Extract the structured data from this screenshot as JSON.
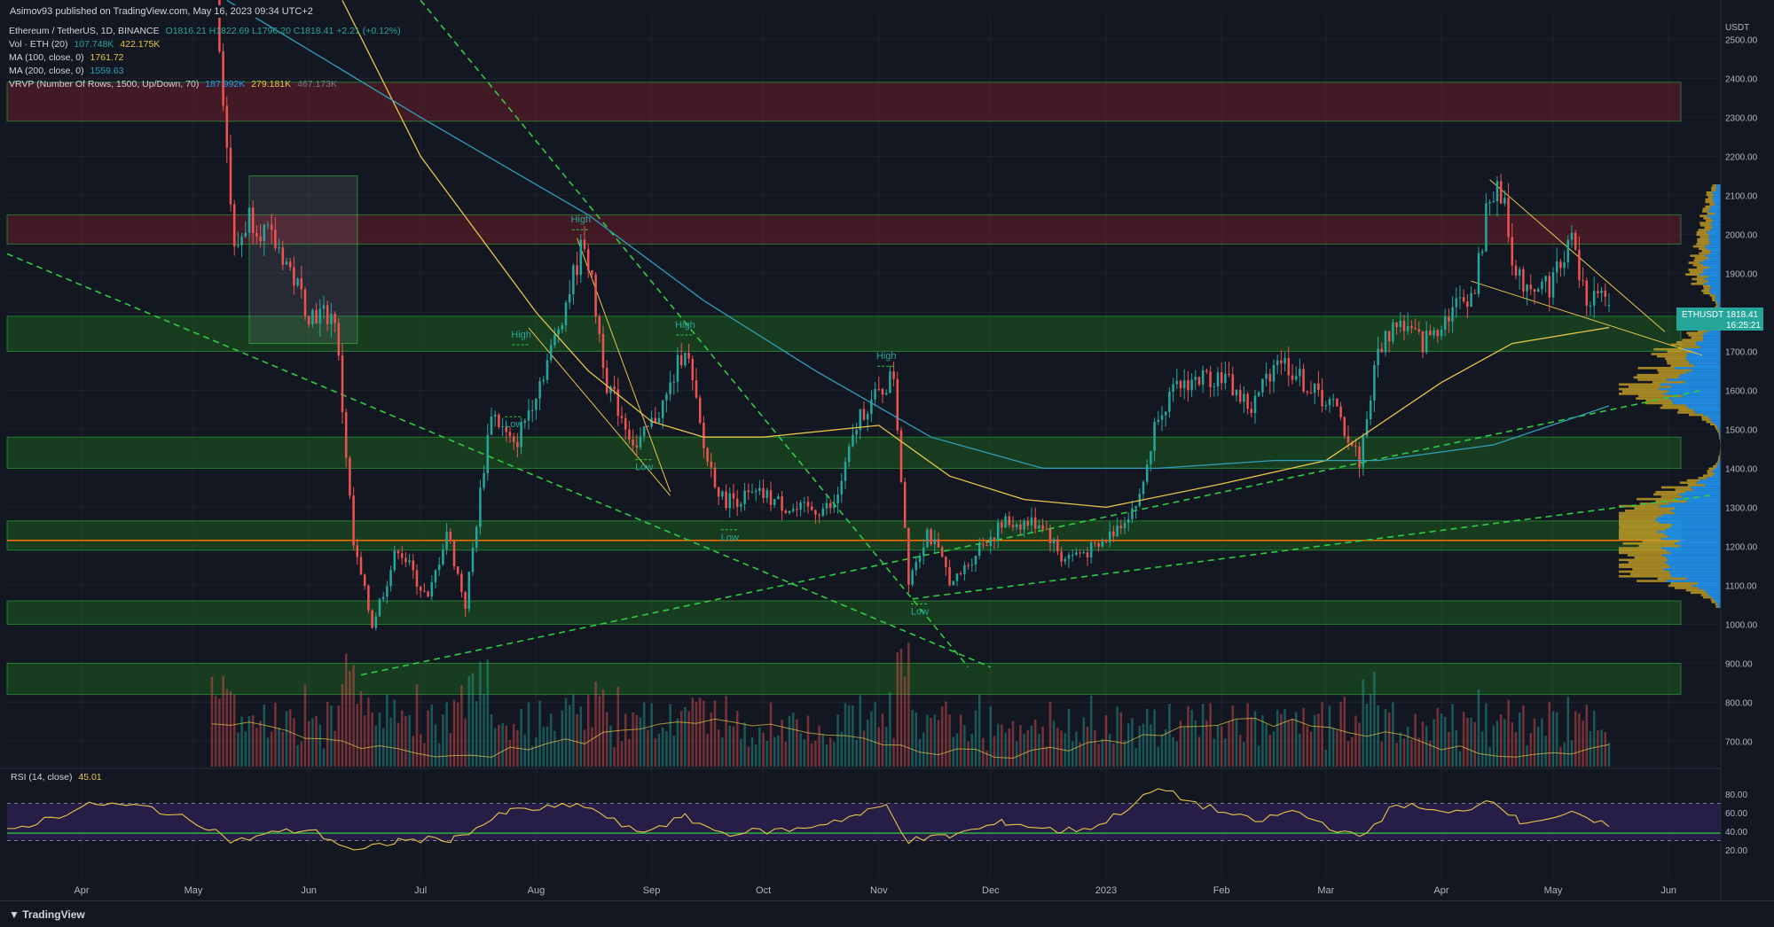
{
  "publisher_line": "Asimov93 published on TradingView.com, May 16, 2023 09:34 UTC+2",
  "legend": {
    "symbol": "Ethereum / TetherUS, 1D, BINANCE",
    "ohlc": "O1816.21 H1822.69 L1796.20 C1818.41 +2.21 (+0.12%)",
    "vol_label": "Vol · ETH (20)",
    "vol_v1": "107.748K",
    "vol_v2": "422.175K",
    "ma100_label": "MA (100, close, 0)",
    "ma100_value": "1761.72",
    "ma200_label": "MA (200, close, 0)",
    "ma200_value": "1559.63",
    "vrvp_label": "VRVP (Number Of Rows, 1500, Up/Down, 70)",
    "vrvp_v1": "187.992K",
    "vrvp_v2": "279.181K",
    "vrvp_v3": "467.173K"
  },
  "rsi_legend": {
    "label": "RSI (14, close)",
    "value": "45.01"
  },
  "price_tag": {
    "symbol": "ETHUSDT",
    "price": "1818.41",
    "countdown": "16:25:21"
  },
  "footer_brand": "TradingView",
  "colors": {
    "background": "#131722",
    "bull": "#26a69a",
    "bear": "#ef5350",
    "ma100": "#e8c547",
    "ma200": "#2e9fb8",
    "trendline": "#2ecc40",
    "resistance_zone": "#7a1f2c",
    "support_zone": "#1f6b1f",
    "rsi_band": "#2a1f4d",
    "vrvp_up": "#2196f3",
    "vrvp_down": "#c9a227",
    "poc": "#ff6d00"
  },
  "chart_data": {
    "type": "candlestick",
    "symbol": "ETHUSDT",
    "price_axis": {
      "unit": "USDT",
      "ticks": [
        2500,
        2400,
        2300,
        2200,
        2100,
        2000,
        1900,
        1800,
        1700,
        1600,
        1500,
        1400,
        1300,
        1200,
        1100,
        1000,
        900,
        800,
        700
      ],
      "ylim": [
        635,
        2560
      ]
    },
    "time_axis": {
      "ticks": [
        "Apr",
        "May",
        "Jun",
        "Jul",
        "Aug",
        "Sep",
        "Oct",
        "Nov",
        "Dec",
        "2023",
        "Feb",
        "Mar",
        "Apr",
        "May",
        "Jun"
      ],
      "x_range": [
        "2022-03-12",
        "2023-06-15"
      ]
    },
    "price_path": [
      [
        "2022-03-12",
        2580
      ],
      [
        "2022-05-05",
        2930
      ],
      [
        "2022-05-08",
        2500
      ],
      [
        "2022-05-12",
        1950
      ],
      [
        "2022-05-16",
        2050
      ],
      [
        "2022-05-25",
        1950
      ],
      [
        "2022-06-01",
        1800
      ],
      [
        "2022-06-08",
        1790
      ],
      [
        "2022-06-13",
        1200
      ],
      [
        "2022-06-18",
        1000
      ],
      [
        "2022-06-25",
        1200
      ],
      [
        "2022-07-03",
        1060
      ],
      [
        "2022-07-08",
        1240
      ],
      [
        "2022-07-13",
        1050
      ],
      [
        "2022-07-20",
        1550
      ],
      [
        "2022-07-26",
        1450
      ],
      [
        "2022-08-05",
        1700
      ],
      [
        "2022-08-14",
        1990
      ],
      [
        "2022-08-20",
        1620
      ],
      [
        "2022-08-28",
        1450
      ],
      [
        "2022-09-05",
        1580
      ],
      [
        "2022-09-10",
        1720
      ],
      [
        "2022-09-15",
        1450
      ],
      [
        "2022-09-20",
        1320
      ],
      [
        "2022-10-01",
        1330
      ],
      [
        "2022-10-10",
        1290
      ],
      [
        "2022-10-20",
        1300
      ],
      [
        "2022-10-27",
        1540
      ],
      [
        "2022-11-01",
        1590
      ],
      [
        "2022-11-05",
        1640
      ],
      [
        "2022-11-09",
        1120
      ],
      [
        "2022-11-14",
        1240
      ],
      [
        "2022-11-21",
        1100
      ],
      [
        "2022-11-28",
        1200
      ],
      [
        "2022-12-05",
        1260
      ],
      [
        "2022-12-15",
        1260
      ],
      [
        "2022-12-20",
        1170
      ],
      [
        "2022-12-30",
        1195
      ],
      [
        "2023-01-10",
        1320
      ],
      [
        "2023-01-15",
        1550
      ],
      [
        "2023-01-22",
        1620
      ],
      [
        "2023-02-01",
        1640
      ],
      [
        "2023-02-09",
        1550
      ],
      [
        "2023-02-16",
        1690
      ],
      [
        "2023-02-25",
        1600
      ],
      [
        "2023-03-03",
        1560
      ],
      [
        "2023-03-10",
        1420
      ],
      [
        "2023-03-15",
        1700
      ],
      [
        "2023-03-20",
        1780
      ],
      [
        "2023-03-27",
        1720
      ],
      [
        "2023-04-03",
        1800
      ],
      [
        "2023-04-10",
        1860
      ],
      [
        "2023-04-14",
        2110
      ],
      [
        "2023-04-18",
        2090
      ],
      [
        "2023-04-21",
        1880
      ],
      [
        "2023-04-30",
        1870
      ],
      [
        "2023-05-06",
        1990
      ],
      [
        "2023-05-09",
        1850
      ],
      [
        "2023-05-16",
        1818
      ]
    ],
    "last": {
      "open": 1816.21,
      "high": 1822.69,
      "low": 1796.2,
      "close": 1818.41
    },
    "moving_averages": [
      {
        "name": "MA (100, close, 0)",
        "last": 1761.72,
        "path": [
          [
            "2022-06-10",
            2600
          ],
          [
            "2022-07-01",
            2200
          ],
          [
            "2022-08-01",
            1800
          ],
          [
            "2022-08-15",
            1650
          ],
          [
            "2022-09-01",
            1520
          ],
          [
            "2022-09-15",
            1480
          ],
          [
            "2022-10-01",
            1480
          ],
          [
            "2022-11-01",
            1510
          ],
          [
            "2022-11-20",
            1380
          ],
          [
            "2022-12-10",
            1320
          ],
          [
            "2023-01-01",
            1300
          ],
          [
            "2023-02-01",
            1360
          ],
          [
            "2023-03-01",
            1420
          ],
          [
            "2023-04-01",
            1620
          ],
          [
            "2023-04-20",
            1720
          ],
          [
            "2023-05-16",
            1761
          ]
        ]
      },
      {
        "name": "MA (200, close, 0)",
        "last": 1559.63,
        "path": [
          [
            "2022-05-10",
            2600
          ],
          [
            "2022-07-01",
            2300
          ],
          [
            "2022-08-15",
            2050
          ],
          [
            "2022-09-15",
            1830
          ],
          [
            "2022-10-15",
            1650
          ],
          [
            "2022-11-15",
            1480
          ],
          [
            "2022-12-15",
            1400
          ],
          [
            "2023-01-15",
            1400
          ],
          [
            "2023-02-15",
            1420
          ],
          [
            "2023-03-15",
            1420
          ],
          [
            "2023-04-15",
            1460
          ],
          [
            "2023-05-16",
            1560
          ]
        ]
      }
    ],
    "zones": [
      {
        "kind": "resistance",
        "y": [
          2290,
          2390
        ]
      },
      {
        "kind": "resistance",
        "y": [
          1975,
          2050
        ]
      },
      {
        "kind": "support",
        "y": [
          1700,
          1790
        ]
      },
      {
        "kind": "support",
        "y": [
          1400,
          1480
        ]
      },
      {
        "kind": "support",
        "y": [
          1190,
          1265
        ]
      },
      {
        "kind": "support",
        "y": [
          1000,
          1060
        ]
      },
      {
        "kind": "support",
        "y": [
          820,
          900
        ]
      }
    ],
    "poc_price": 1215,
    "annotations": [
      {
        "text": "High",
        "date": "2022-08-13",
        "price": 2030
      },
      {
        "text": "High",
        "date": "2022-09-10",
        "price": 1760
      },
      {
        "text": "High",
        "date": "2022-07-28",
        "price": 1735
      },
      {
        "text": "High",
        "date": "2022-11-03",
        "price": 1680
      },
      {
        "text": "Low",
        "date": "2022-07-26",
        "price": 1505
      },
      {
        "text": "Low",
        "date": "2022-08-30",
        "price": 1395
      },
      {
        "text": "Low",
        "date": "2022-09-22",
        "price": 1215
      },
      {
        "text": "Low",
        "date": "2022-11-12",
        "price": 1025
      }
    ],
    "rsi": {
      "name": "RSI (14, close)",
      "last": 45.01,
      "ticks": [
        80,
        60,
        40,
        20
      ],
      "band": [
        30,
        70
      ],
      "path": [
        [
          "2022-03-12",
          40
        ],
        [
          "2022-04-05",
          70
        ],
        [
          "2022-04-20",
          65
        ],
        [
          "2022-05-05",
          45
        ],
        [
          "2022-05-12",
          28
        ],
        [
          "2022-05-20",
          37
        ],
        [
          "2022-06-01",
          42
        ],
        [
          "2022-06-14",
          18
        ],
        [
          "2022-06-25",
          30
        ],
        [
          "2022-07-10",
          32
        ],
        [
          "2022-07-25",
          62
        ],
        [
          "2022-08-14",
          68
        ],
        [
          "2022-08-28",
          38
        ],
        [
          "2022-09-10",
          55
        ],
        [
          "2022-09-20",
          38
        ],
        [
          "2022-10-10",
          42
        ],
        [
          "2022-10-27",
          58
        ],
        [
          "2022-11-03",
          68
        ],
        [
          "2022-11-09",
          30
        ],
        [
          "2022-11-20",
          35
        ],
        [
          "2022-12-05",
          50
        ],
        [
          "2022-12-20",
          40
        ],
        [
          "2022-12-30",
          46
        ],
        [
          "2023-01-15",
          86
        ],
        [
          "2023-01-25",
          70
        ],
        [
          "2023-02-10",
          50
        ],
        [
          "2023-02-20",
          62
        ],
        [
          "2023-03-10",
          32
        ],
        [
          "2023-03-20",
          70
        ],
        [
          "2023-04-03",
          58
        ],
        [
          "2023-04-15",
          75
        ],
        [
          "2023-04-22",
          50
        ],
        [
          "2023-05-06",
          58
        ],
        [
          "2023-05-16",
          45
        ]
      ]
    }
  }
}
